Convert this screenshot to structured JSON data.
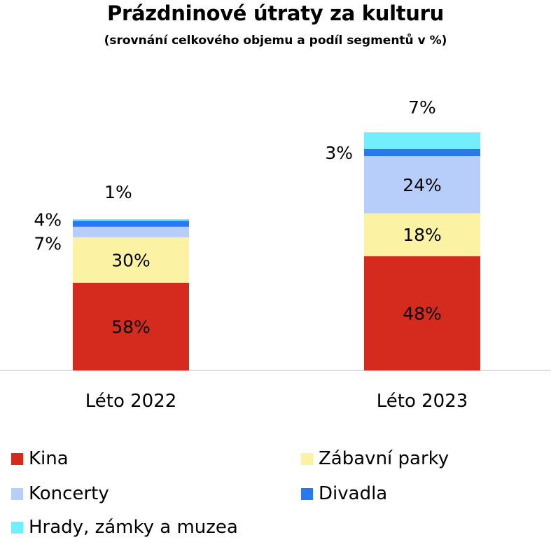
{
  "chart_data": {
    "type": "bar",
    "stacked": true,
    "title": "Prázdninové útraty za kulturu",
    "subtitle": "(srovnání celkového objemu a podíl segmentů v %)",
    "categories": [
      "Léto 2022",
      "Léto 2023"
    ],
    "totals_relative": [
      216,
      340
    ],
    "series": [
      {
        "name": "Kina",
        "color": "#d52b1e",
        "values": [
          58,
          48
        ],
        "labels": [
          "58%",
          "48%"
        ],
        "label_position": "inside"
      },
      {
        "name": "Zábavní parky",
        "color": "#fbf3a3",
        "values": [
          30,
          18
        ],
        "labels": [
          "30%",
          "18%"
        ],
        "label_position": "inside"
      },
      {
        "name": "Koncerty",
        "color": "#b8cefa",
        "values": [
          7,
          24
        ],
        "labels": [
          "7%",
          "24%"
        ],
        "label_position": "inside-or-left"
      },
      {
        "name": "Divadla",
        "color": "#2a78f1",
        "values": [
          4,
          3
        ],
        "labels": [
          "4%",
          "3%"
        ],
        "label_position": "left"
      },
      {
        "name": "Hrady, zámky a muzea",
        "color": "#73eefc",
        "values": [
          1,
          7
        ],
        "labels": [
          "1%",
          "7%"
        ],
        "label_position": "above"
      }
    ],
    "legend": {
      "position": "bottom",
      "columns": 2
    },
    "grid": false
  }
}
